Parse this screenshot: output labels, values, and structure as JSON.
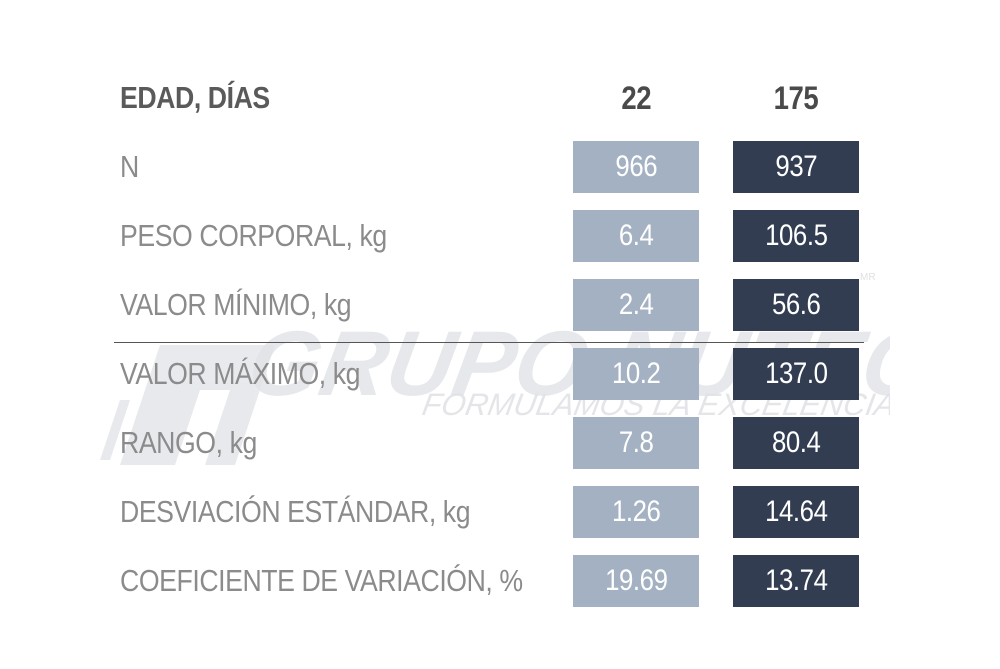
{
  "chart_data": {
    "type": "table",
    "columns": [
      "EDAD, DÍAS",
      "22",
      "175"
    ],
    "rows": [
      {
        "label": "N",
        "values": [
          "966",
          "937"
        ]
      },
      {
        "label": "PESO CORPORAL, kg",
        "values": [
          "6.4",
          "106.5"
        ]
      },
      {
        "label": "VALOR MÍNIMO, kg",
        "values": [
          "2.4",
          "56.6"
        ]
      },
      {
        "label": "VALOR MÁXIMO, kg",
        "values": [
          "10.2",
          "137.0"
        ]
      },
      {
        "label": "RANGO, kg",
        "values": [
          "7.8",
          "80.4"
        ]
      },
      {
        "label": "DESVIACIÓN ESTÁNDAR, kg",
        "values": [
          "1.26",
          "14.64"
        ]
      },
      {
        "label": "COEFICIENTE DE VARIACIÓN, %",
        "values": [
          "19.69",
          "13.74"
        ]
      }
    ],
    "colors": {
      "col1_fill": "#a3b1c2",
      "col2_fill": "#323d52",
      "label_text": "#8b8b8b",
      "header_text": "#5a5a5a"
    }
  },
  "watermark": {
    "brand": "GRUPO NUTEC",
    "tagline": "FORMULAMOS LA EXCELENCIA",
    "trademark": "MR"
  }
}
